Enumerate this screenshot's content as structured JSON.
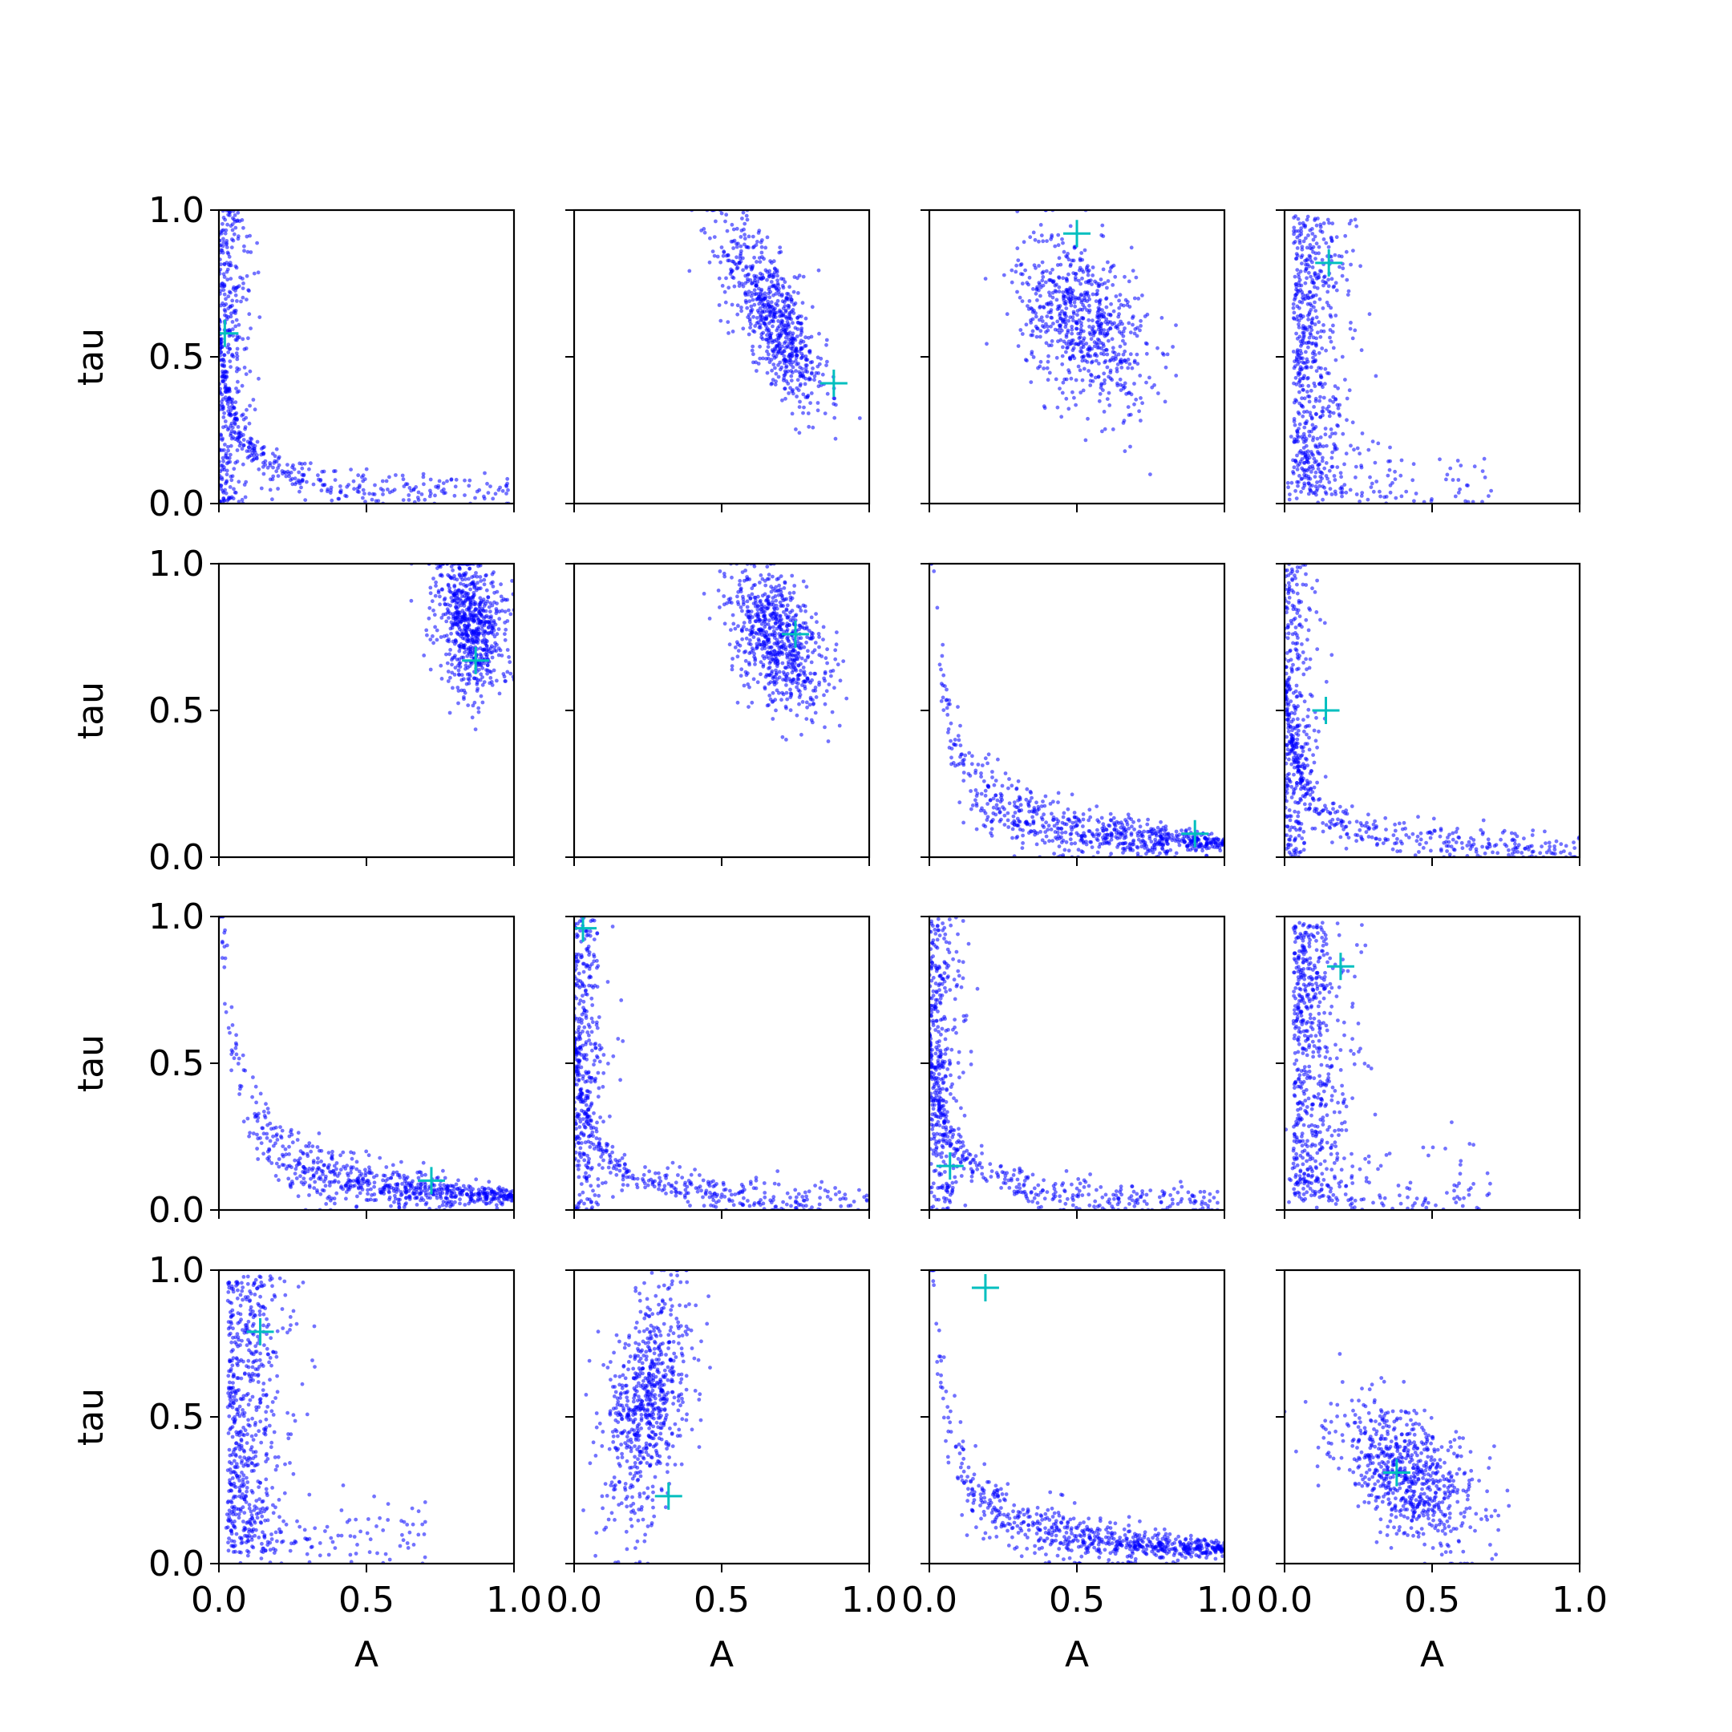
{
  "chart_data": {
    "type": "scatter",
    "layout": "4x4 grid of scatter subplots with shared axes",
    "xlabel": "A",
    "ylabel": "tau",
    "xlim": [
      0,
      1
    ],
    "ylim": [
      0,
      1
    ],
    "xticks": [
      "0.0",
      "0.5",
      "1.0"
    ],
    "yticks": [
      "0.0",
      "0.5",
      "1.0"
    ],
    "point_color": "#0000ff",
    "marker_color": "#00bfbf",
    "marker_style": "plus",
    "panels": [
      {
        "row": 0,
        "col": 0,
        "pattern": "hyperbola",
        "true_value": [
          0.02,
          0.58
        ]
      },
      {
        "row": 0,
        "col": 1,
        "pattern": "elongated",
        "center": [
          0.68,
          0.63
        ],
        "spread": [
          0.09,
          0.16
        ],
        "rho": -0.75,
        "true_value": [
          0.88,
          0.41
        ]
      },
      {
        "row": 0,
        "col": 2,
        "pattern": "blob",
        "center": [
          0.52,
          0.62
        ],
        "spread": [
          0.11,
          0.15
        ],
        "rho": -0.4,
        "true_value": [
          0.5,
          0.92
        ]
      },
      {
        "row": 0,
        "col": 3,
        "pattern": "vertical",
        "true_value": [
          0.15,
          0.82
        ]
      },
      {
        "row": 1,
        "col": 0,
        "pattern": "blob",
        "center": [
          0.85,
          0.8
        ],
        "spread": [
          0.06,
          0.12
        ],
        "rho": -0.3,
        "true_value": [
          0.87,
          0.67
        ]
      },
      {
        "row": 1,
        "col": 1,
        "pattern": "blob",
        "center": [
          0.69,
          0.74
        ],
        "spread": [
          0.08,
          0.12
        ],
        "rho": -0.4,
        "true_value": [
          0.75,
          0.76
        ]
      },
      {
        "row": 1,
        "col": 2,
        "pattern": "curve",
        "true_value": [
          0.9,
          0.08
        ]
      },
      {
        "row": 1,
        "col": 3,
        "pattern": "hyperbola",
        "true_value": [
          0.14,
          0.5
        ]
      },
      {
        "row": 2,
        "col": 0,
        "pattern": "curve",
        "true_value": [
          0.72,
          0.1
        ]
      },
      {
        "row": 2,
        "col": 1,
        "pattern": "hyperbola",
        "true_value": [
          0.03,
          0.96
        ]
      },
      {
        "row": 2,
        "col": 2,
        "pattern": "hyperbola",
        "true_value": [
          0.07,
          0.15
        ]
      },
      {
        "row": 2,
        "col": 3,
        "pattern": "vertical",
        "true_value": [
          0.19,
          0.83
        ]
      },
      {
        "row": 3,
        "col": 0,
        "pattern": "vertical",
        "true_value": [
          0.14,
          0.79
        ]
      },
      {
        "row": 3,
        "col": 1,
        "pattern": "elongated",
        "center": [
          0.25,
          0.55
        ],
        "spread": [
          0.07,
          0.2
        ],
        "rho": 0.4,
        "true_value": [
          0.32,
          0.23
        ]
      },
      {
        "row": 3,
        "col": 2,
        "pattern": "curve",
        "true_value": [
          0.19,
          0.94
        ]
      },
      {
        "row": 3,
        "col": 3,
        "pattern": "elongated",
        "center": [
          0.42,
          0.3
        ],
        "spread": [
          0.12,
          0.12
        ],
        "rho": -0.5,
        "true_value": [
          0.38,
          0.31
        ]
      }
    ]
  }
}
